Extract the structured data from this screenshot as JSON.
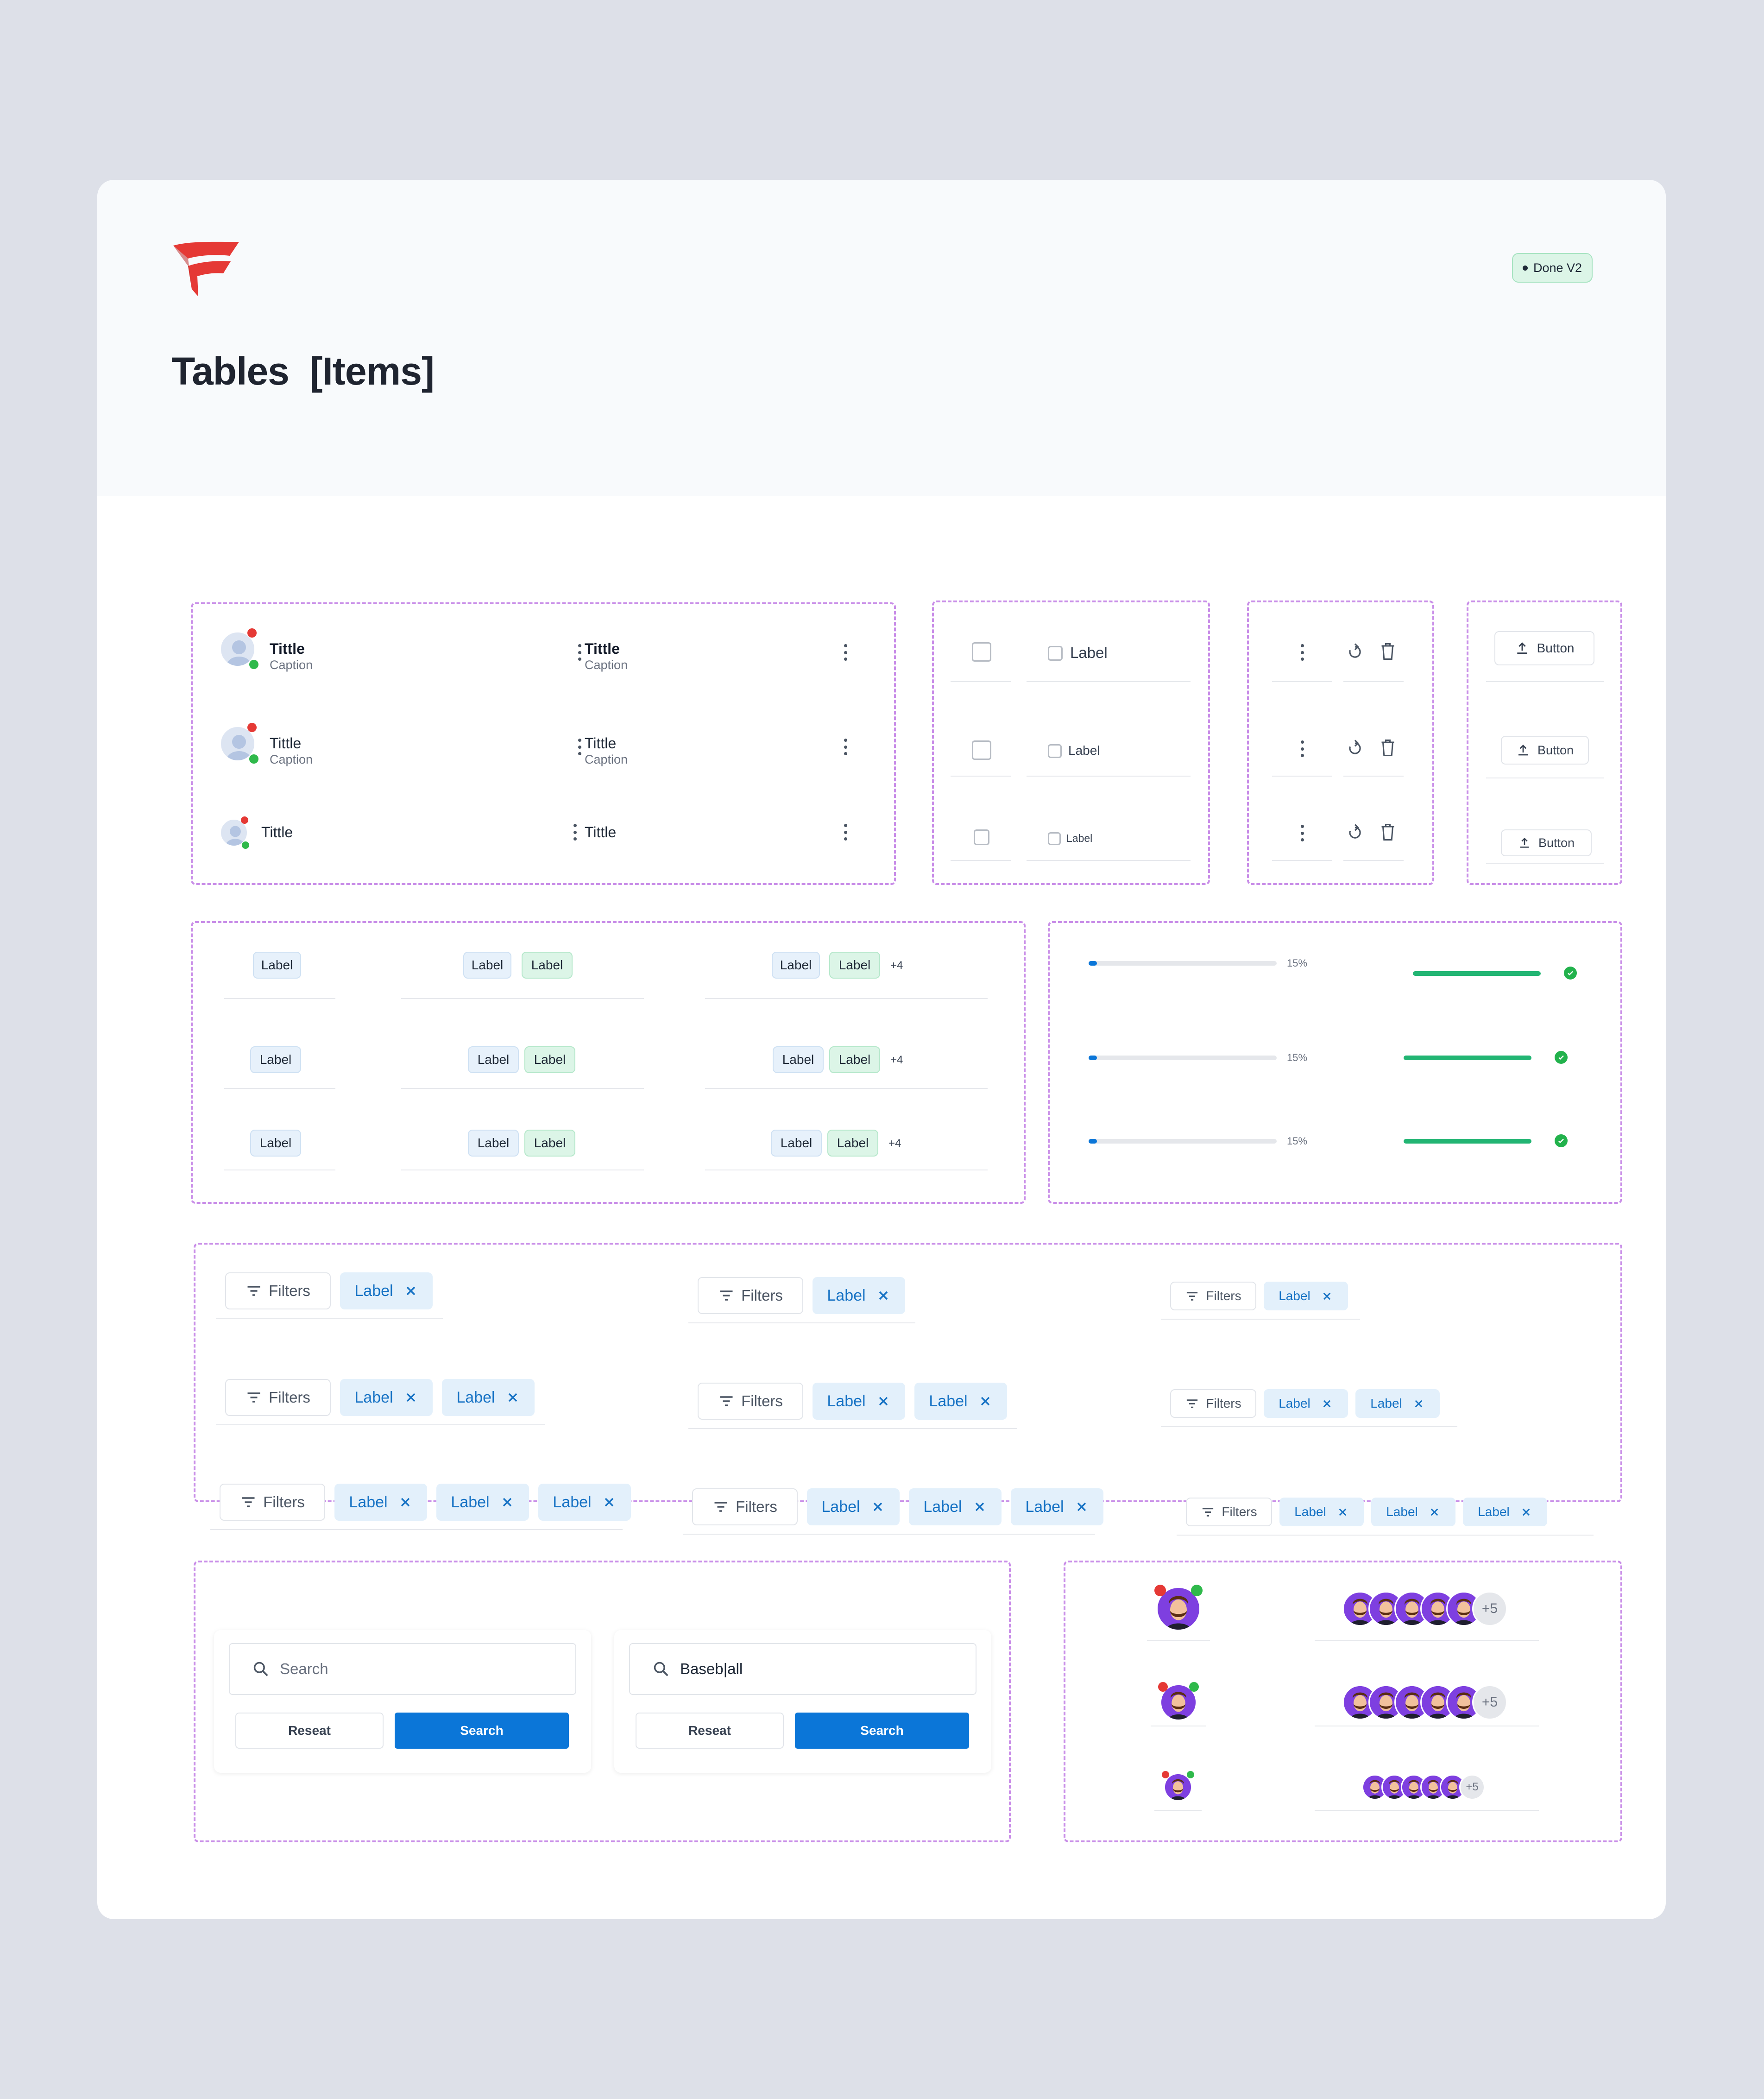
{
  "header": {
    "title": "Tables  [Items]",
    "status_badge": "Done V2",
    "logo": "red-flag-logo"
  },
  "colors": {
    "accent_blue": "#0b76d8",
    "accent_red": "#e53935",
    "success_green": "#22b573",
    "dashed_border": "#c98ee8"
  },
  "people_cells": {
    "rows": [
      {
        "title": "Tittle",
        "caption": "Caption"
      },
      {
        "title": "Tittle",
        "caption": "Caption"
      },
      {
        "title": "Tittle"
      }
    ]
  },
  "checkbox_cells": {
    "label": "Label"
  },
  "action_cells": {
    "icons": [
      "kebab-icon",
      "refresh-icon",
      "trash-icon"
    ]
  },
  "button_cells": {
    "label": "Button",
    "icon": "upload-icon"
  },
  "tag_cells": {
    "label": "Label",
    "more": "+4"
  },
  "progress_cells": {
    "value": 0.15,
    "percent_label": "15%",
    "complete_value": 1.0
  },
  "filter_cells": {
    "filters_label": "Filters",
    "tag_label": "Label"
  },
  "search_panels": [
    {
      "placeholder": "Search",
      "value": "",
      "reset_label": "Reseat",
      "search_label": "Search"
    },
    {
      "placeholder": "Search",
      "value": "Baseb|all",
      "reset_label": "Reseat",
      "search_label": "Search"
    }
  ],
  "avatar_cells": {
    "more": "+5"
  }
}
